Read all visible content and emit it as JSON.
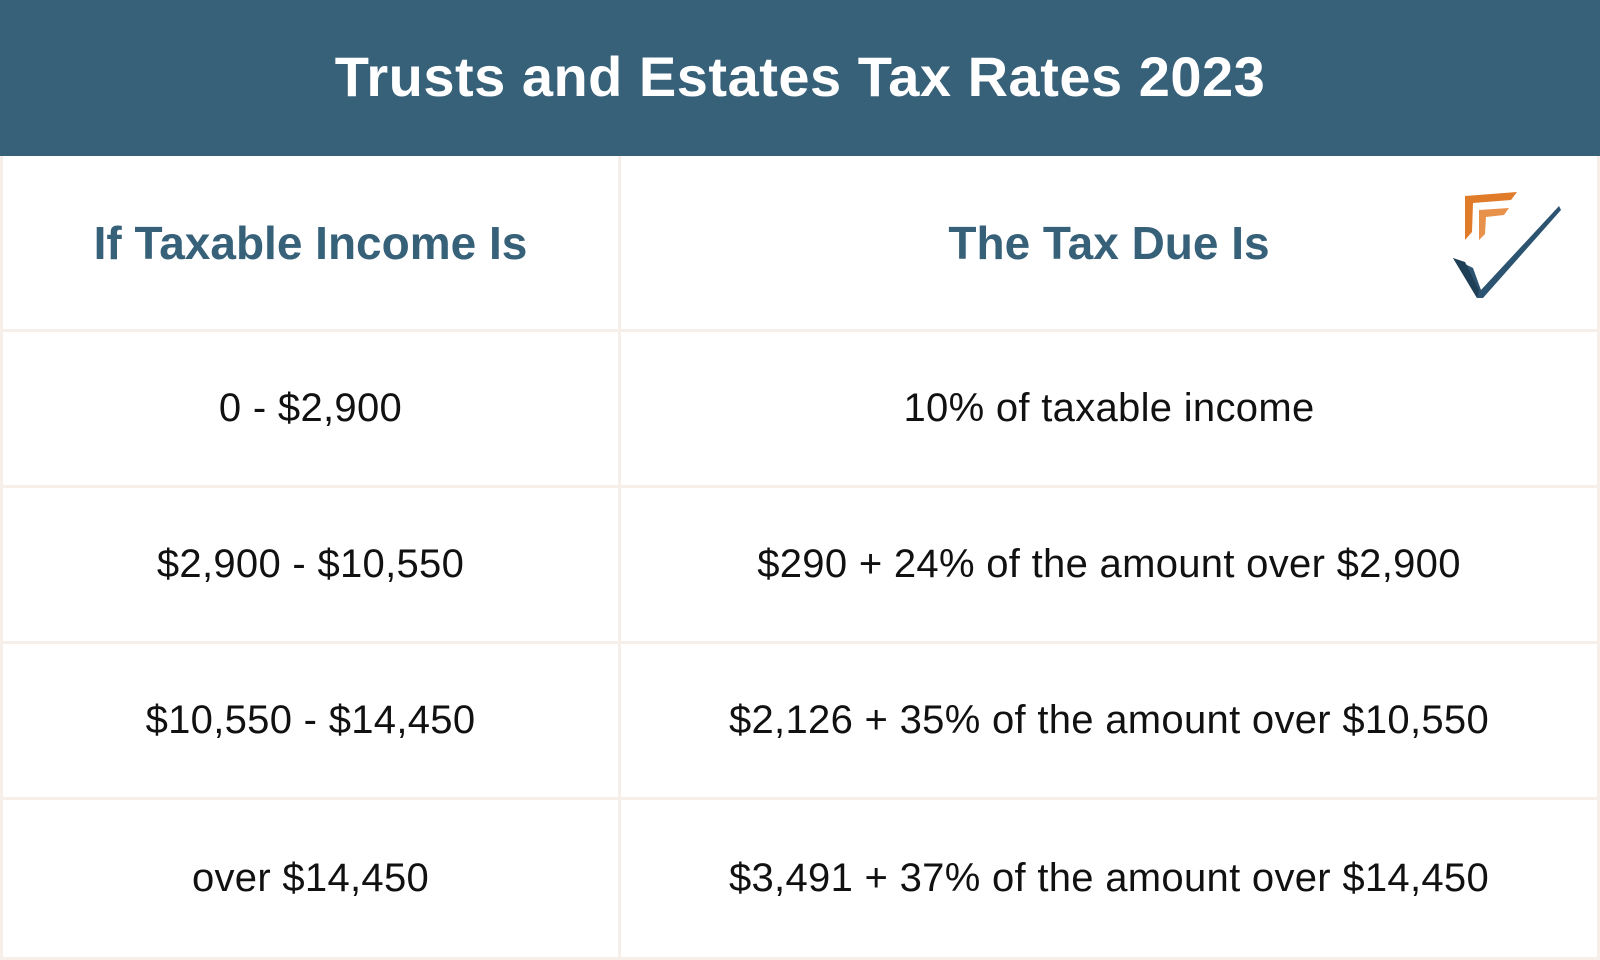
{
  "title": "Trusts and Estates Tax Rates 2023",
  "headers": {
    "income": "If Taxable Income Is",
    "tax": "The Tax Due Is"
  },
  "rows": [
    {
      "income": "0 - $2,900",
      "tax": "10% of taxable income"
    },
    {
      "income": "$2,900 - $10,550",
      "tax": "$290 + 24% of the amount over $2,900"
    },
    {
      "income": "$10,550 - $14,450",
      "tax": "$2,126 + 35% of the amount over $10,550"
    },
    {
      "income": "over $14,450",
      "tax": "$3,491 + 37% of the amount over $14,450"
    }
  ],
  "logo": {
    "icon": "checkmark-logo-icon"
  },
  "colors": {
    "header_bg": "#376079",
    "header_text": "#ffffff",
    "column_header_text": "#376079",
    "body_text": "#111111",
    "grid_lines": "#f6efe9",
    "logo_orange": "#e07b2a",
    "logo_navy": "#2c5470"
  }
}
